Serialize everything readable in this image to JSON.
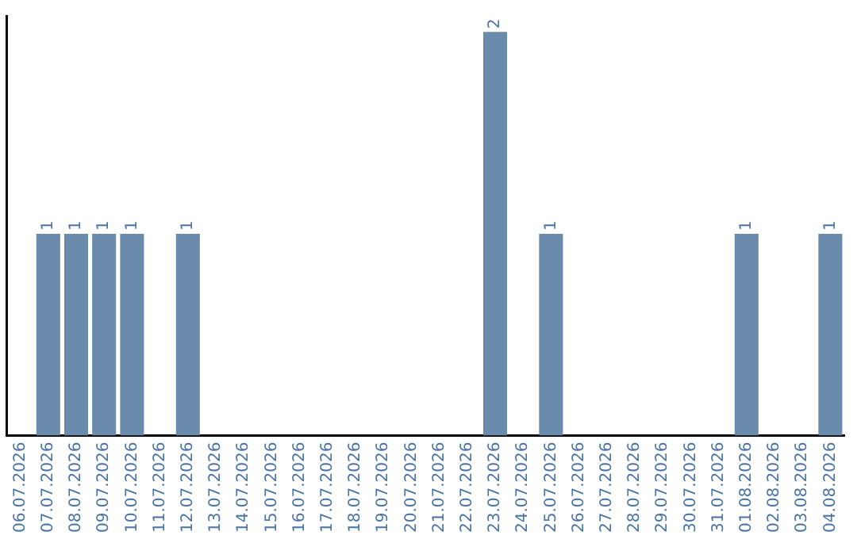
{
  "chart_data": {
    "type": "bar",
    "categories": [
      "06.07.2026",
      "07.07.2026",
      "08.07.2026",
      "09.07.2026",
      "10.07.2026",
      "11.07.2026",
      "12.07.2026",
      "13.07.2026",
      "14.07.2026",
      "15.07.2026",
      "16.07.2026",
      "17.07.2026",
      "18.07.2026",
      "19.07.2026",
      "20.07.2026",
      "21.07.2026",
      "22.07.2026",
      "23.07.2026",
      "24.07.2026",
      "25.07.2026",
      "26.07.2026",
      "27.07.2026",
      "28.07.2026",
      "29.07.2026",
      "30.07.2026",
      "31.07.2026",
      "01.08.2026",
      "02.08.2026",
      "03.08.2026",
      "04.08.2026"
    ],
    "values": [
      0,
      1,
      1,
      1,
      1,
      0,
      1,
      0,
      0,
      0,
      0,
      0,
      0,
      0,
      0,
      0,
      0,
      2,
      0,
      1,
      0,
      0,
      0,
      0,
      0,
      0,
      1,
      0,
      0,
      1
    ],
    "value_labels": [
      null,
      "1",
      "1",
      "1",
      "1",
      null,
      "1",
      null,
      null,
      null,
      null,
      null,
      null,
      null,
      null,
      null,
      null,
      "2",
      null,
      "1",
      null,
      null,
      null,
      null,
      null,
      null,
      "1",
      null,
      null,
      "1"
    ],
    "color": "#6a8bab",
    "ylim": [
      0,
      2.08
    ],
    "tick_labels": "x",
    "grid": false,
    "legend": false
  }
}
